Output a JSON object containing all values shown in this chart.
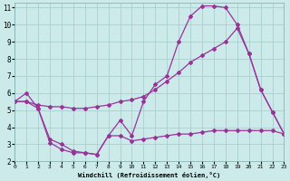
{
  "xlabel": "Windchill (Refroidissement éolien,°C)",
  "bg_color": "#cceaea",
  "grid_color": "#aacece",
  "line_color": "#993399",
  "xlim": [
    0,
    23
  ],
  "ylim": [
    2,
    11.3
  ],
  "xticks": [
    0,
    1,
    2,
    3,
    4,
    5,
    6,
    7,
    8,
    9,
    10,
    11,
    12,
    13,
    14,
    15,
    16,
    17,
    18,
    19,
    20,
    21,
    22,
    23
  ],
  "yticks": [
    2,
    3,
    4,
    5,
    6,
    7,
    8,
    9,
    10,
    11
  ],
  "lineA_x": [
    0,
    1,
    2,
    3,
    4,
    5,
    6,
    7,
    8,
    9,
    10,
    11,
    12,
    13,
    14,
    15,
    16,
    17,
    18,
    19,
    20,
    21,
    22,
    23
  ],
  "lineA_y": [
    5.5,
    6.0,
    5.1,
    3.1,
    2.7,
    2.5,
    2.5,
    2.4,
    3.5,
    4.4,
    3.5,
    5.5,
    6.5,
    7.0,
    9.0,
    10.5,
    11.1,
    11.1,
    11.0,
    10.0,
    8.3,
    6.2,
    4.9,
    3.6
  ],
  "lineB_x": [
    0,
    1,
    2,
    3,
    4,
    5,
    6,
    7,
    8,
    9,
    10,
    11,
    12,
    13,
    14,
    15,
    16,
    17,
    18,
    19,
    20,
    21,
    22,
    23
  ],
  "lineB_y": [
    5.5,
    5.5,
    5.3,
    5.2,
    5.2,
    5.1,
    5.1,
    5.2,
    5.3,
    5.5,
    5.6,
    5.8,
    6.2,
    6.7,
    7.2,
    7.8,
    8.2,
    8.6,
    9.0,
    9.8,
    8.3,
    6.2,
    4.9,
    3.6
  ],
  "lineC_x": [
    0,
    1,
    2,
    3,
    4,
    5,
    6,
    7,
    8,
    9,
    10,
    11,
    12,
    13,
    14,
    15,
    16,
    17,
    18,
    19,
    20,
    21,
    22,
    23
  ],
  "lineC_y": [
    5.5,
    5.5,
    5.1,
    3.3,
    3.0,
    2.6,
    2.5,
    2.4,
    3.5,
    3.5,
    3.2,
    3.3,
    3.4,
    3.5,
    3.6,
    3.6,
    3.7,
    3.8,
    3.8,
    3.8,
    3.8,
    3.8,
    3.8,
    3.6
  ]
}
